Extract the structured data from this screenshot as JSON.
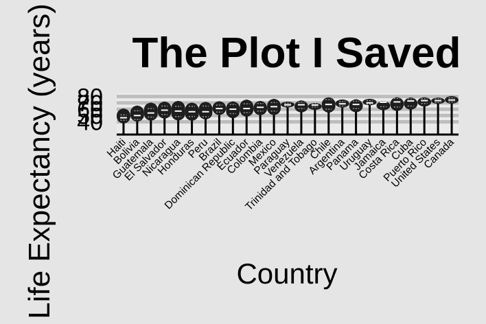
{
  "chart_data": {
    "type": "violin",
    "title": "The Plot I Saved",
    "xlabel": "Country",
    "ylabel": "Life Expectancy (years)",
    "ylim": [
      20,
      85
    ],
    "y_ticks": [
      "40",
      "50",
      "60",
      "70",
      "80"
    ],
    "grid": true,
    "categories": [
      "Haiti",
      "Bolivia",
      "Guatemala",
      "El Salvador",
      "Nicaragua",
      "Honduras",
      "Peru",
      "Brazil",
      "Dominican Republic",
      "Ecuador",
      "Colombia",
      "Mexico",
      "Paraguay",
      "Venezuela",
      "Trinidad and Tobago",
      "Chile",
      "Argentina",
      "Panama",
      "Uruguay",
      "Jamaica",
      "Costa Rica",
      "Cuba",
      "Puerto Rico",
      "United States",
      "Canada"
    ],
    "series": [
      {
        "values": [
          {
            "min": 37.6,
            "q1": 42.5,
            "median": 46.5,
            "q3": 51.0,
            "max": 60.9
          },
          {
            "min": 40.4,
            "q1": 44.0,
            "median": 50.0,
            "q3": 57.5,
            "max": 65.6
          },
          {
            "min": 42.0,
            "q1": 47.5,
            "median": 54.0,
            "q3": 61.0,
            "max": 70.3
          },
          {
            "min": 45.3,
            "q1": 51.5,
            "median": 58.5,
            "q3": 65.0,
            "max": 71.9
          },
          {
            "min": 42.3,
            "q1": 48.5,
            "median": 57.0,
            "q3": 64.5,
            "max": 72.9
          },
          {
            "min": 41.9,
            "q1": 48.5,
            "median": 56.0,
            "q3": 64.5,
            "max": 70.2
          },
          {
            "min": 43.9,
            "q1": 48.0,
            "median": 56.0,
            "q3": 65.0,
            "max": 71.4
          },
          {
            "min": 50.9,
            "q1": 55.5,
            "median": 61.0,
            "q3": 66.5,
            "max": 72.4
          },
          {
            "min": 45.9,
            "q1": 53.0,
            "median": 60.0,
            "q3": 67.5,
            "max": 72.2
          },
          {
            "min": 48.4,
            "q1": 54.5,
            "median": 61.0,
            "q3": 68.5,
            "max": 75.0
          },
          {
            "min": 50.6,
            "q1": 57.0,
            "median": 63.0,
            "q3": 69.0,
            "max": 72.9
          },
          {
            "min": 50.8,
            "q1": 57.0,
            "median": 64.0,
            "q3": 70.5,
            "max": 76.2
          },
          {
            "min": 62.6,
            "q1": 65.0,
            "median": 67.0,
            "q3": 69.5,
            "max": 71.8
          },
          {
            "min": 55.1,
            "q1": 61.0,
            "median": 67.0,
            "q3": 71.0,
            "max": 73.7
          },
          {
            "min": 59.1,
            "q1": 63.5,
            "median": 66.5,
            "q3": 69.0,
            "max": 69.8
          },
          {
            "min": 54.7,
            "q1": 60.0,
            "median": 67.5,
            "q3": 75.0,
            "max": 78.6
          },
          {
            "min": 62.5,
            "q1": 65.0,
            "median": 68.5,
            "q3": 72.0,
            "max": 75.3
          },
          {
            "min": 55.2,
            "q1": 61.0,
            "median": 67.5,
            "q3": 72.5,
            "max": 75.5
          },
          {
            "min": 66.1,
            "q1": 68.0,
            "median": 70.0,
            "q3": 73.5,
            "max": 76.4
          },
          {
            "min": 58.5,
            "q1": 64.0,
            "median": 71.0,
            "q3": 72.0,
            "max": 72.6
          },
          {
            "min": 57.2,
            "q1": 63.5,
            "median": 71.5,
            "q3": 77.0,
            "max": 78.8
          },
          {
            "min": 59.4,
            "q1": 65.0,
            "median": 73.0,
            "q3": 76.5,
            "max": 78.3
          },
          {
            "min": 64.3,
            "q1": 69.0,
            "median": 73.5,
            "q3": 76.5,
            "max": 78.7
          },
          {
            "min": 68.4,
            "q1": 70.5,
            "median": 73.5,
            "q3": 76.5,
            "max": 78.2
          },
          {
            "min": 68.8,
            "q1": 71.5,
            "median": 74.5,
            "q3": 78.0,
            "max": 80.7
          }
        ]
      }
    ]
  }
}
